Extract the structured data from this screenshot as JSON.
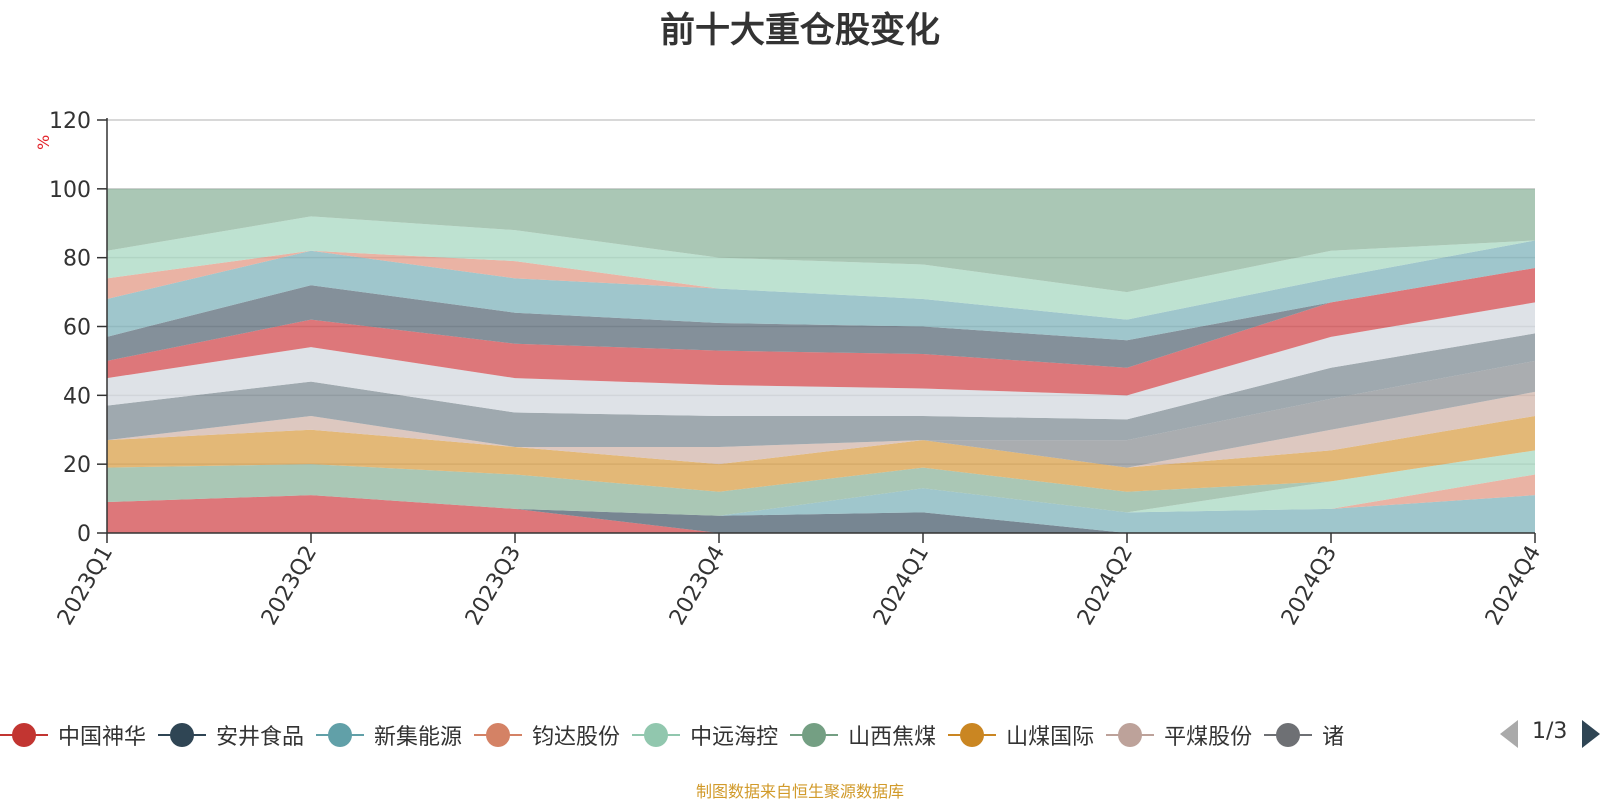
{
  "chart_data": {
    "type": "area",
    "title": "前十大重仓股变化",
    "ylabel": "%",
    "ylim": [
      0,
      120
    ],
    "yticks": [
      "0",
      "20",
      "40",
      "60",
      "80",
      "100",
      "120"
    ],
    "categories": [
      "2023Q1",
      "2023Q2",
      "2023Q3",
      "2023Q4",
      "2024Q1",
      "2024Q2",
      "2024Q3",
      "2024Q4"
    ],
    "stacked_boundaries": [
      [
        9,
        11,
        7,
        0,
        0,
        0,
        0,
        0
      ],
      [
        9,
        11,
        7,
        5,
        6,
        0,
        0,
        0
      ],
      [
        9,
        11,
        7,
        5,
        13,
        6,
        7,
        11
      ],
      [
        9,
        11,
        7,
        5,
        13,
        6,
        7,
        17
      ],
      [
        9,
        11,
        7,
        5,
        13,
        6,
        15,
        24
      ],
      [
        19,
        20,
        17,
        12,
        19,
        12,
        15,
        24
      ],
      [
        27,
        30,
        25,
        20,
        27,
        19,
        24,
        34
      ],
      [
        27,
        34,
        25,
        25,
        27,
        19,
        30,
        41
      ],
      [
        27,
        34,
        25,
        25,
        27,
        27,
        39,
        50
      ],
      [
        37,
        44,
        35,
        34,
        34,
        33,
        48,
        58
      ],
      [
        45,
        54,
        45,
        43,
        42,
        40,
        57,
        67
      ],
      [
        50,
        62,
        55,
        53,
        52,
        48,
        67,
        77
      ],
      [
        57,
        72,
        64,
        61,
        60,
        56,
        67,
        77
      ],
      [
        68,
        82,
        74,
        71,
        68,
        62,
        74,
        85
      ],
      [
        74,
        82,
        79,
        71,
        68,
        62,
        74,
        85
      ],
      [
        82,
        92,
        88,
        80,
        78,
        70,
        82,
        85
      ],
      [
        100,
        100,
        100,
        100,
        100,
        100,
        100,
        100
      ]
    ],
    "layer_colors": [
      "#d14a4d",
      "#4a5d6e",
      "#7fb3bb",
      "#e39a86",
      "#a8d8c2",
      "#8db49c",
      "#d9a04a",
      "#d2b5ab",
      "#8e9296",
      "#7f8c94",
      "#d3d8df",
      "#d14a4d",
      "#5b6b78",
      "#7fb3bb",
      "#e39a86",
      "#a8d8c2",
      "#8db49c"
    ],
    "legend": {
      "items": [
        {
          "name": "中国神华",
          "color": "#c23531"
        },
        {
          "name": "安井食品",
          "color": "#2f4554"
        },
        {
          "name": "新集能源",
          "color": "#61a0a8"
        },
        {
          "name": "钧达股份",
          "color": "#d48265"
        },
        {
          "name": "中远海控",
          "color": "#91c7ae"
        },
        {
          "name": "山西焦煤",
          "color": "#749f83"
        },
        {
          "name": "山煤国际",
          "color": "#ca8622"
        },
        {
          "name": "平煤股份",
          "color": "#bda29a"
        },
        {
          "name": "诸",
          "color": "#6e7074"
        }
      ],
      "page": "1/3",
      "placement": "bottom"
    },
    "grid": true
  },
  "footer": {
    "source": "制图数据来自恒生聚源数据库"
  },
  "icons": {
    "prev": "triangle-left-icon",
    "next": "triangle-right-icon"
  }
}
